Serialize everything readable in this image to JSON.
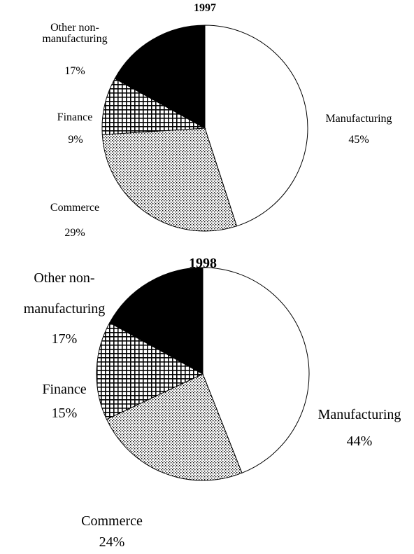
{
  "chart_data": [
    {
      "type": "pie",
      "title": "1997",
      "categories": [
        "Manufacturing",
        "Commerce",
        "Finance",
        "Other non-manufacturing"
      ],
      "values": [
        45,
        29,
        9,
        17
      ],
      "value_labels": [
        "45%",
        "29%",
        "9%",
        "17%"
      ],
      "fills": [
        "white",
        "dots",
        "grid",
        "black"
      ]
    },
    {
      "type": "pie",
      "title": "1998",
      "categories": [
        "Manufacturing",
        "Commerce",
        "Finance",
        "Other non-manufacturing"
      ],
      "values": [
        44,
        24,
        15,
        17
      ],
      "value_labels": [
        "44%",
        "24%",
        "15%",
        "17%"
      ],
      "fills": [
        "white",
        "dots",
        "grid",
        "black"
      ]
    }
  ]
}
